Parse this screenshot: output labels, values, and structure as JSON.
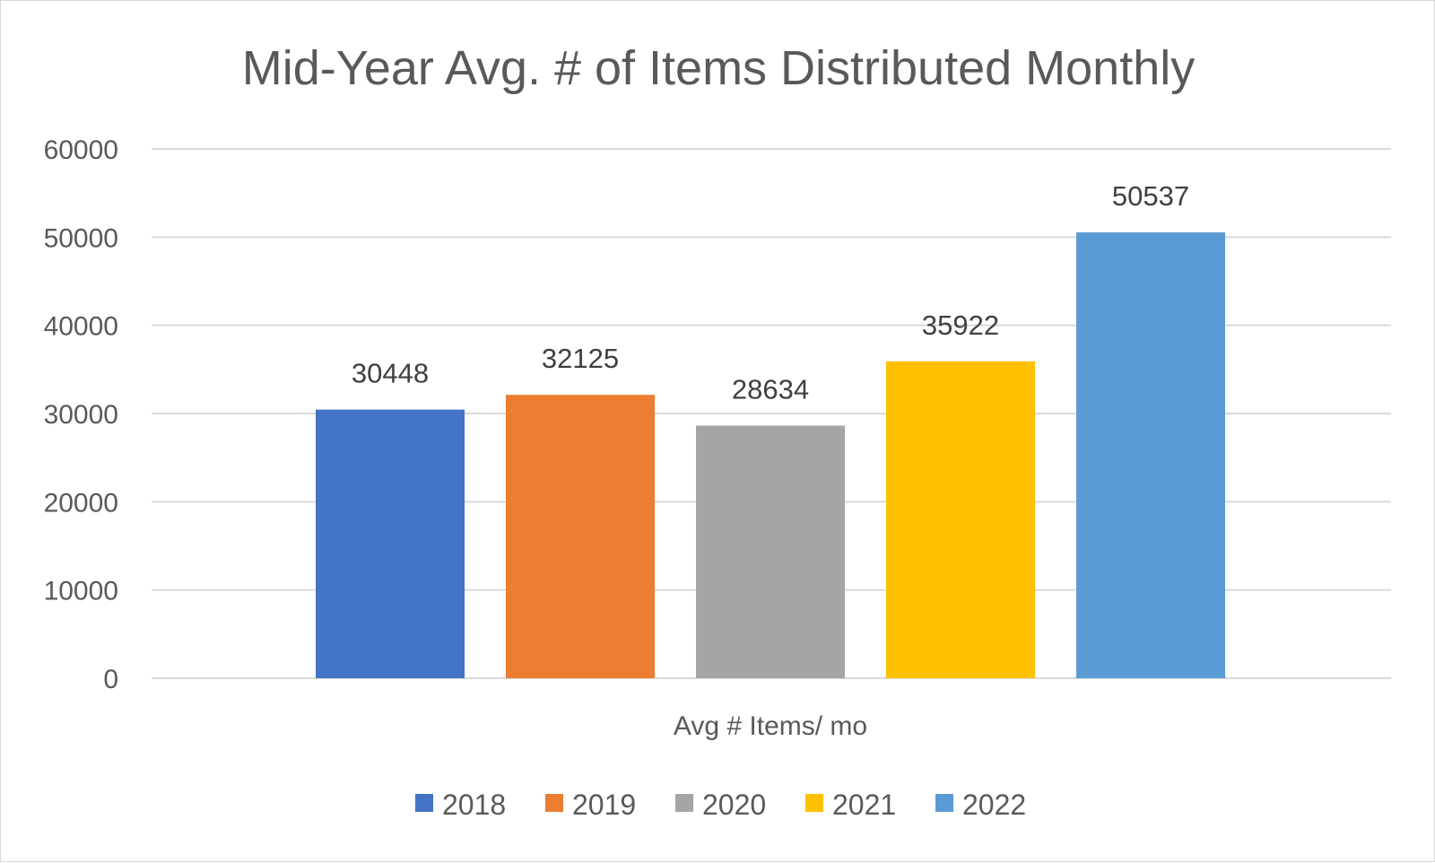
{
  "chart_data": {
    "type": "bar",
    "title": "Mid-Year Avg. # of Items Distributed Monthly",
    "categories": [
      "Avg # Items/ mo"
    ],
    "series": [
      {
        "name": "2018",
        "values": [
          30448
        ],
        "color": "#4472c4"
      },
      {
        "name": "2019",
        "values": [
          32125
        ],
        "color": "#ed7d31"
      },
      {
        "name": "2020",
        "values": [
          28634
        ],
        "color": "#a5a5a5"
      },
      {
        "name": "2021",
        "values": [
          35922
        ],
        "color": "#ffc000"
      },
      {
        "name": "2022",
        "values": [
          50537
        ],
        "color": "#5b9bd5"
      }
    ],
    "ylim": [
      0,
      60000
    ],
    "yticks": [
      0,
      10000,
      20000,
      30000,
      40000,
      50000,
      60000
    ],
    "grid": true,
    "legend": "bottom",
    "data_labels": true
  }
}
